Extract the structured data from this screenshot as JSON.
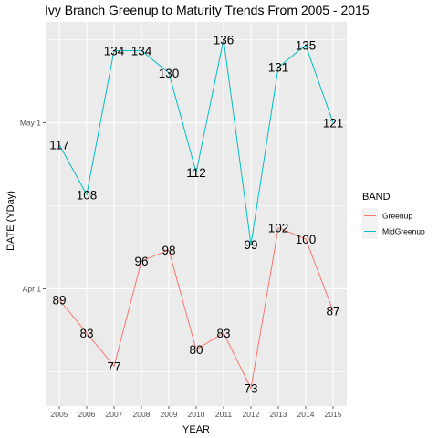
{
  "chart_data": {
    "type": "line",
    "title": "Ivy Branch Greenup to Maturity Trends From 2005 - 2015",
    "xlabel": "YEAR",
    "ylabel": "DATE (YDay)",
    "x": [
      "2005",
      "2006",
      "2007",
      "2008",
      "2009",
      "2010",
      "2011",
      "2012",
      "2013",
      "2014",
      "2015"
    ],
    "series": [
      {
        "name": "Greenup",
        "color": "#F8766D",
        "values": [
          89,
          83,
          77,
          96,
          98,
          80,
          83,
          73,
          102,
          100,
          87
        ]
      },
      {
        "name": "MidGreenup",
        "color": "#00BFC4",
        "values": [
          117,
          108,
          134,
          134,
          130,
          112,
          136,
          99,
          131,
          135,
          121
        ]
      }
    ],
    "y_ticks": [
      {
        "value": 91,
        "label": "Apr 1"
      },
      {
        "value": 121,
        "label": "May 1"
      }
    ],
    "ylim": [
      69.8,
      139.2
    ],
    "legend_title": "BAND",
    "legend_position": "right",
    "grid": true,
    "panel_background": "#EBEBEB"
  }
}
